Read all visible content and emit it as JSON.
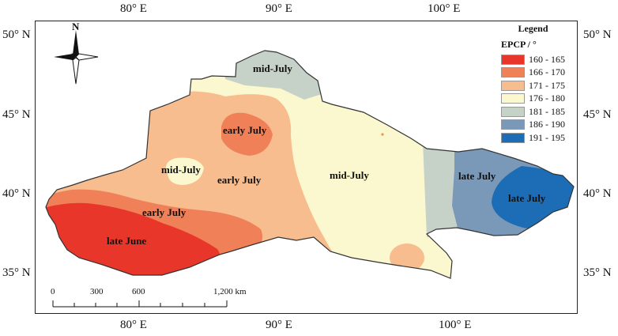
{
  "lon_labels": [
    "80° E",
    "90° E",
    "100° E"
  ],
  "lat_labels": [
    "50° N",
    "45° N",
    "40° N",
    "35° N"
  ],
  "north_label": "N",
  "legend": {
    "title": "Legend",
    "subtitle": "EPCP / °",
    "items": [
      {
        "label": "160 - 165",
        "color": "#e8372a"
      },
      {
        "label": "166 - 170",
        "color": "#f08058"
      },
      {
        "label": "171 - 175",
        "color": "#f7bd8e"
      },
      {
        "label": "176 - 180",
        "color": "#fbf8cf"
      },
      {
        "label": "181 - 185",
        "color": "#c6d2c8"
      },
      {
        "label": "186 - 190",
        "color": "#7a98b8"
      },
      {
        "label": "191 - 195",
        "color": "#1c6db6"
      }
    ]
  },
  "region_labels": [
    "mid-July",
    "early July",
    "mid-July",
    "early July",
    "mid-July",
    "early July",
    "late June",
    "late July",
    "late July"
  ],
  "scale": {
    "ticks": [
      "0",
      "300",
      "600",
      "1,200 km"
    ]
  }
}
